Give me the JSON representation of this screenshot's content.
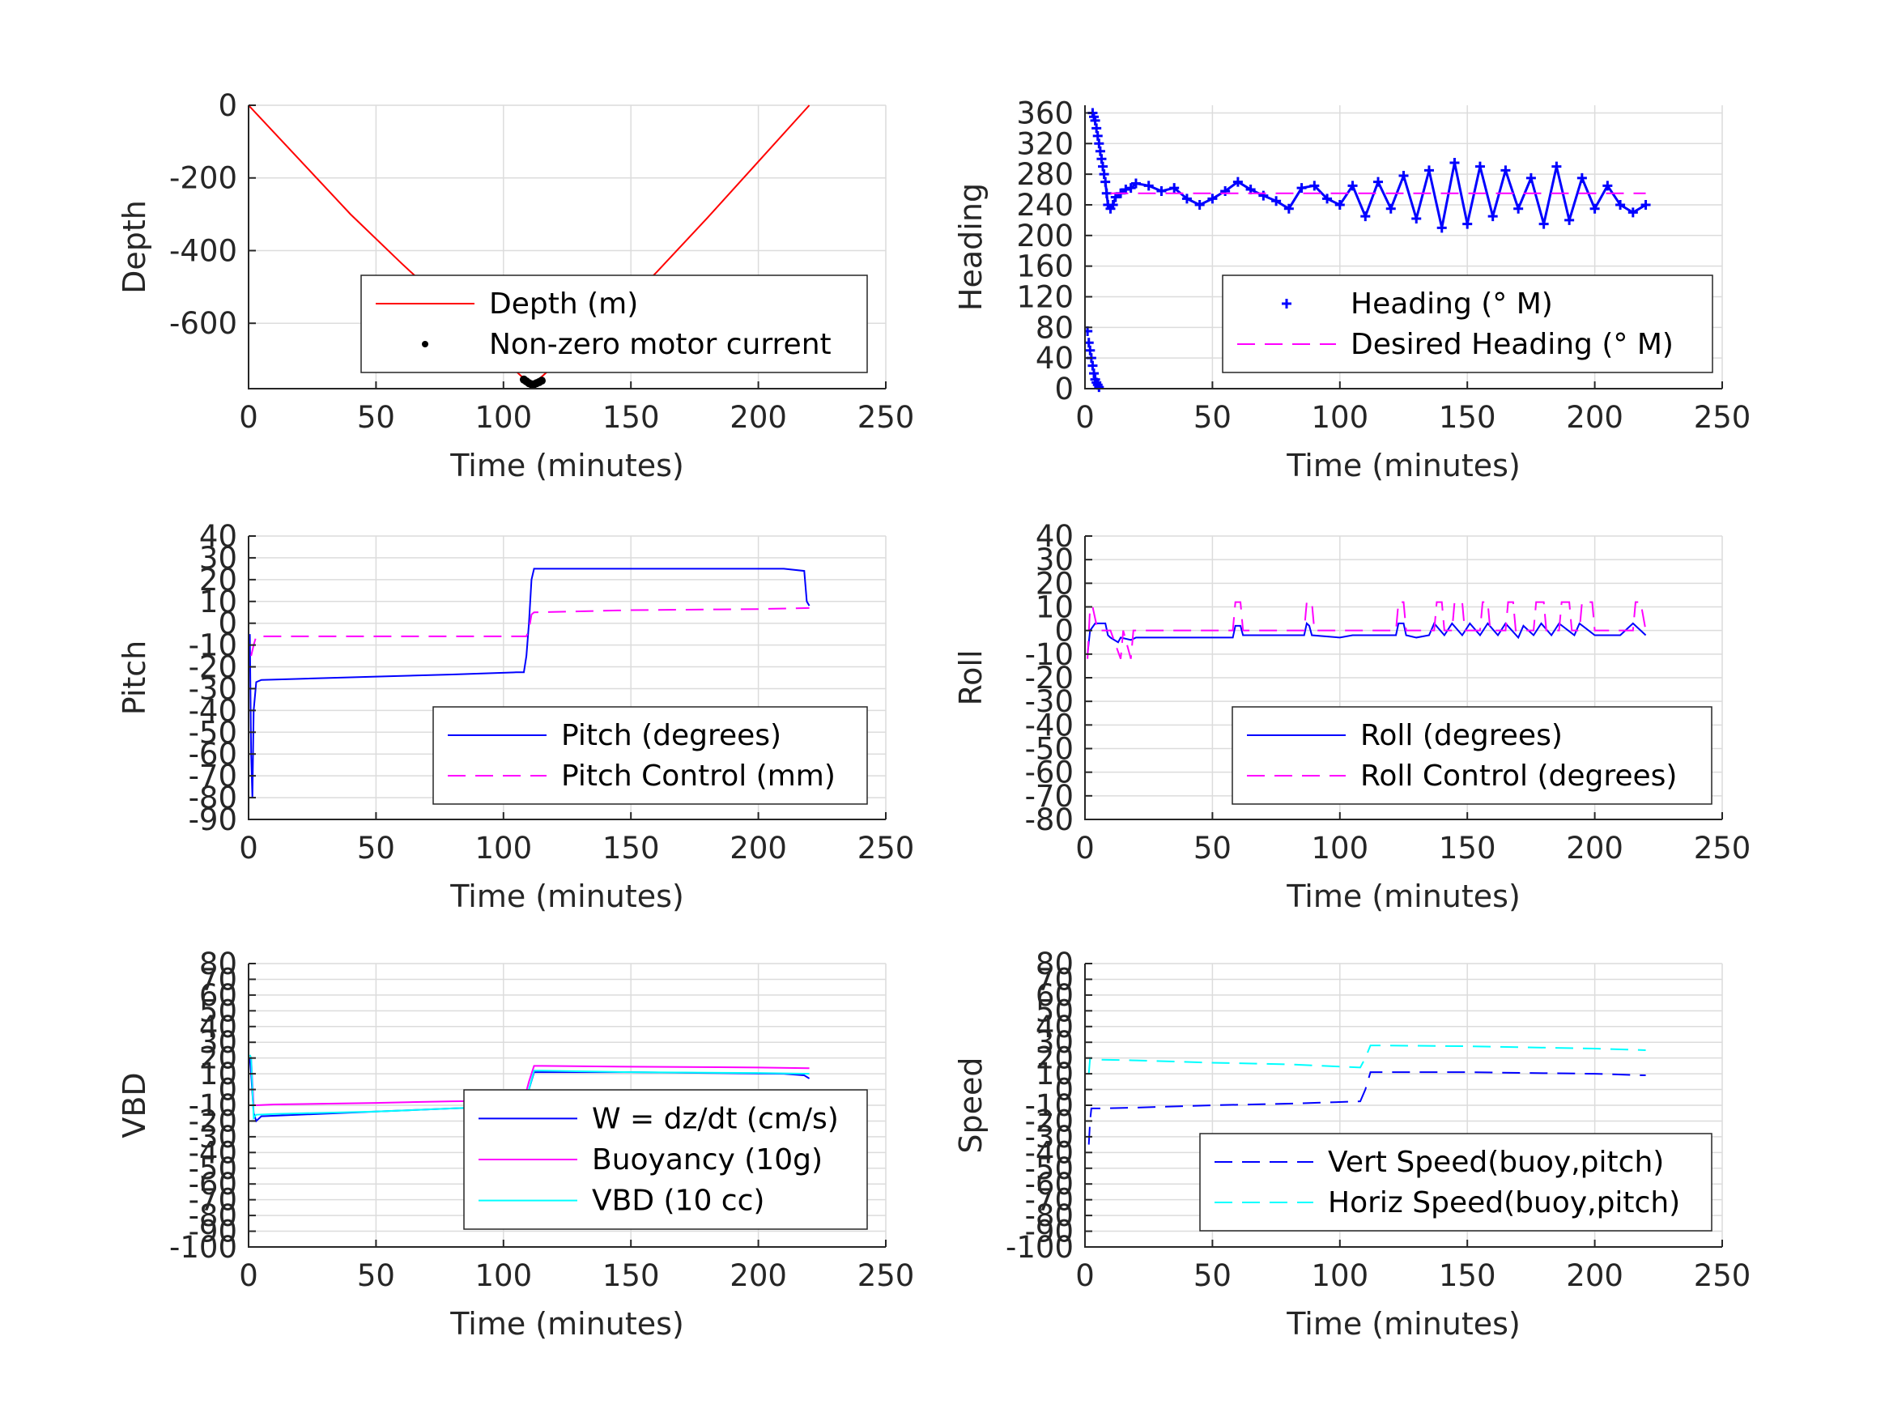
{
  "chart_data": [
    {
      "type": "line",
      "xlabel": "Time (minutes)",
      "ylabel": "Depth",
      "xlim": [
        0,
        250
      ],
      "ylim": [
        -780,
        0
      ],
      "xticks": [
        0,
        50,
        100,
        150,
        200,
        250
      ],
      "yticks": [
        0,
        -200,
        -400,
        -600
      ],
      "grid": true,
      "legend_position": "bottom-right",
      "series": [
        {
          "name": "Depth (m)",
          "color": "#ff0000",
          "style": "solid",
          "x": [
            0,
            20,
            40,
            60,
            80,
            100,
            110,
            113,
            120,
            140,
            160,
            180,
            200,
            220
          ],
          "y": [
            0,
            -150,
            -300,
            -435,
            -565,
            -700,
            -765,
            -760,
            -715,
            -600,
            -460,
            -310,
            -155,
            0
          ]
        },
        {
          "name": "Non-zero motor current",
          "color": "#000000",
          "style": "dot",
          "x": [
            108,
            109,
            110,
            111,
            112,
            113,
            114,
            115
          ],
          "y": [
            -755,
            -760,
            -765,
            -768,
            -768,
            -765,
            -762,
            -758
          ]
        }
      ]
    },
    {
      "type": "scatter",
      "xlabel": "Time (minutes)",
      "ylabel": "Heading",
      "xlim": [
        0,
        250
      ],
      "ylim": [
        0,
        370
      ],
      "xticks": [
        0,
        50,
        100,
        150,
        200,
        250
      ],
      "yticks": [
        0,
        40,
        80,
        120,
        160,
        200,
        240,
        280,
        320,
        360
      ],
      "grid": true,
      "legend_position": "bottom-right",
      "series": [
        {
          "name": "Heading (° M)",
          "color": "#0000ff",
          "style": "marker-plus",
          "x": [
            1,
            1.5,
            2,
            2.5,
            3,
            3.5,
            4,
            4.5,
            5,
            5.5,
            3,
            3.5,
            4,
            4.5,
            5,
            5.5,
            6,
            6.5,
            7,
            7.5,
            8,
            8.5,
            9,
            10,
            11,
            12,
            14,
            16,
            18,
            20,
            25,
            30,
            35,
            40,
            45,
            50,
            55,
            60,
            65,
            70,
            75,
            80,
            85,
            90,
            95,
            100,
            105,
            110,
            115,
            120,
            125,
            130,
            135,
            140,
            145,
            150,
            155,
            160,
            165,
            170,
            175,
            180,
            185,
            190,
            195,
            200,
            205,
            210,
            215,
            220
          ],
          "y": [
            75,
            60,
            50,
            40,
            30,
            20,
            12,
            8,
            5,
            2,
            360,
            355,
            350,
            340,
            330,
            320,
            310,
            300,
            290,
            280,
            270,
            255,
            240,
            235,
            240,
            250,
            255,
            260,
            262,
            268,
            265,
            258,
            262,
            248,
            240,
            248,
            258,
            270,
            260,
            252,
            245,
            235,
            262,
            265,
            248,
            240,
            265,
            225,
            270,
            235,
            278,
            222,
            285,
            210,
            295,
            215,
            290,
            225,
            285,
            235,
            275,
            215,
            290,
            220,
            275,
            235,
            265,
            240,
            230,
            240
          ]
        },
        {
          "name": "Desired Heading (° M)",
          "color": "#ff00ff",
          "style": "dash",
          "x": [
            10,
            220
          ],
          "y": [
            255,
            255
          ]
        }
      ]
    },
    {
      "type": "line",
      "xlabel": "Time (minutes)",
      "ylabel": "Pitch",
      "xlim": [
        0,
        250
      ],
      "ylim": [
        -90,
        40
      ],
      "xticks": [
        0,
        50,
        100,
        150,
        200,
        250
      ],
      "yticks": [
        40,
        30,
        20,
        10,
        0,
        -10,
        -20,
        -30,
        -40,
        -50,
        -60,
        -70,
        -80,
        -90
      ],
      "grid": true,
      "legend_position": "bottom-right",
      "series": [
        {
          "name": "Pitch (degrees)",
          "color": "#0000ff",
          "style": "solid",
          "x": [
            0.5,
            1,
            1.5,
            2,
            3,
            5,
            20,
            50,
            80,
            105,
            108,
            109,
            110,
            111,
            112,
            115,
            150,
            180,
            210,
            218,
            219,
            220
          ],
          "y": [
            -5,
            -60,
            -80,
            -40,
            -27,
            -26,
            -25.5,
            -24.5,
            -23.5,
            -22.5,
            -22.5,
            -15,
            0,
            20,
            25,
            25,
            25,
            25,
            25,
            24,
            10,
            8
          ]
        },
        {
          "name": "Pitch Control (mm)",
          "color": "#ff00ff",
          "style": "dash",
          "x": [
            1,
            2,
            3,
            5,
            20,
            50,
            80,
            109,
            110,
            111,
            112,
            150,
            200,
            220
          ],
          "y": [
            -15,
            -10,
            -6,
            -6,
            -6,
            -6,
            -6,
            -6,
            -3,
            4,
            5,
            6,
            6.5,
            7
          ]
        }
      ]
    },
    {
      "type": "line",
      "xlabel": "Time (minutes)",
      "ylabel": "Roll",
      "xlim": [
        0,
        250
      ],
      "ylim": [
        -80,
        40
      ],
      "xticks": [
        0,
        50,
        100,
        150,
        200,
        250
      ],
      "yticks": [
        40,
        30,
        20,
        10,
        0,
        -10,
        -20,
        -30,
        -40,
        -50,
        -60,
        -70,
        -80
      ],
      "grid": true,
      "legend_position": "bottom-right",
      "series": [
        {
          "name": "Roll (degrees)",
          "color": "#0000ff",
          "style": "solid",
          "x": [
            1,
            2,
            4,
            8,
            9,
            10,
            13,
            14,
            18,
            20,
            40,
            58,
            59,
            61,
            62,
            70,
            86,
            87,
            88,
            89,
            100,
            105,
            110,
            122,
            123,
            125,
            126,
            130,
            135,
            137,
            141,
            144,
            148,
            151,
            155,
            158,
            162,
            165,
            170,
            172,
            176,
            179,
            183,
            186,
            192,
            194,
            200,
            210,
            215,
            218,
            220
          ],
          "y": [
            -10,
            0,
            3,
            3,
            -2,
            -3,
            -5,
            -3,
            -4,
            -3,
            -3,
            -3,
            2,
            2,
            -2,
            -2,
            -2,
            3,
            2,
            -2,
            -3,
            -2,
            -2,
            -2,
            3,
            3,
            -2,
            -3,
            -2,
            3,
            -2,
            3,
            -2,
            3,
            -2,
            3,
            -2,
            3,
            -3,
            2,
            -2,
            3,
            -2,
            3,
            -2,
            3,
            -2,
            -2,
            3,
            0,
            -2
          ]
        },
        {
          "name": "Roll Control (degrees)",
          "color": "#ff00ff",
          "style": "dash",
          "x": [
            1,
            2,
            3,
            5,
            9,
            10,
            14,
            15,
            18,
            19,
            58,
            59,
            61,
            62,
            86,
            87,
            89,
            90,
            122,
            123,
            125,
            126,
            137,
            138,
            140,
            141,
            144,
            145,
            148,
            149,
            155,
            156,
            158,
            159,
            165,
            166,
            168,
            169,
            176,
            177,
            180,
            181,
            186,
            187,
            190,
            191,
            194,
            195,
            199,
            200,
            215,
            216,
            218,
            220
          ],
          "y": [
            -12,
            10,
            10,
            0,
            0,
            0,
            -12,
            0,
            -12,
            0,
            0,
            12,
            12,
            0,
            0,
            12,
            12,
            0,
            0,
            12,
            12,
            0,
            0,
            12,
            12,
            0,
            0,
            12,
            12,
            0,
            0,
            12,
            12,
            0,
            0,
            12,
            12,
            0,
            0,
            12,
            12,
            0,
            0,
            12,
            12,
            0,
            0,
            12,
            12,
            0,
            0,
            12,
            12,
            0
          ]
        }
      ]
    },
    {
      "type": "line",
      "xlabel": "Time (minutes)",
      "ylabel": "VBD",
      "xlim": [
        0,
        250
      ],
      "ylim": [
        -100,
        80
      ],
      "xticks": [
        0,
        50,
        100,
        150,
        200,
        250
      ],
      "yticks": [
        80,
        70,
        60,
        50,
        40,
        30,
        20,
        10,
        0,
        -10,
        -20,
        -30,
        -40,
        -50,
        -60,
        -70,
        -80,
        -90,
        -100
      ],
      "ytick_labels": [
        "80",
        "70",
        "60",
        "50",
        "40",
        "30",
        "20",
        "10",
        "0",
        "-10",
        "-20",
        "-30",
        "-40",
        "-50",
        "-60",
        "-70",
        "-80",
        "-90",
        "-100"
      ],
      "grid": true,
      "legend_position": "bottom-right",
      "series": [
        {
          "name": "W = dz/dt (cm/s)",
          "color": "#0000ff",
          "style": "solid",
          "x": [
            0.5,
            1,
            2,
            3,
            5,
            20,
            50,
            80,
            108,
            109,
            110,
            112,
            115,
            150,
            180,
            210,
            218,
            219,
            220
          ],
          "y": [
            20,
            10,
            -15,
            -20,
            -17,
            -16,
            -14,
            -12,
            -10.5,
            -8,
            0,
            11,
            11,
            11,
            10.5,
            10,
            9,
            8,
            7
          ]
        },
        {
          "name": "Buoyancy (10g)",
          "color": "#ff00ff",
          "style": "solid",
          "x": [
            1,
            2,
            3,
            10,
            50,
            80,
            108,
            110,
            112,
            115,
            150,
            200,
            220
          ],
          "y": [
            20,
            -10,
            -10,
            -9.5,
            -8.5,
            -7.5,
            -7,
            5,
            15,
            15,
            14.5,
            14,
            13.5
          ]
        },
        {
          "name": "VBD (10 cc)",
          "color": "#00ffff",
          "style": "solid",
          "x": [
            0.5,
            1,
            2,
            3,
            10,
            50,
            80,
            108,
            110,
            112,
            115,
            150,
            200,
            220
          ],
          "y": [
            22,
            20,
            -18,
            -16,
            -15.5,
            -14,
            -12,
            -10,
            0,
            12,
            12,
            11,
            10.5,
            10
          ]
        }
      ]
    },
    {
      "type": "line",
      "xlabel": "Time (minutes)",
      "ylabel": "Speed",
      "xlim": [
        0,
        250
      ],
      "ylim": [
        -100,
        80
      ],
      "xticks": [
        0,
        50,
        100,
        150,
        200,
        250
      ],
      "yticks": [
        80,
        70,
        60,
        50,
        40,
        30,
        20,
        10,
        0,
        -10,
        -20,
        -30,
        -40,
        -50,
        -60,
        -70,
        -80,
        -90,
        -100
      ],
      "ytick_labels": [
        "80",
        "70",
        "60",
        "50",
        "40",
        "30",
        "20",
        "10",
        "0",
        "-10",
        "-20",
        "-30",
        "-40",
        "-50",
        "-60",
        "-70",
        "-80",
        "-90",
        "-100"
      ],
      "grid": true,
      "legend_position": "bottom-right",
      "series": [
        {
          "name": "Vert Speed(buoy,pitch)",
          "color": "#0000ff",
          "style": "dash",
          "x": [
            1.5,
            2,
            2.5,
            5,
            20,
            50,
            80,
            108,
            110,
            112,
            114,
            150,
            200,
            220
          ],
          "y": [
            -35,
            -20,
            -12,
            -12,
            -11.5,
            -10,
            -9,
            -7.5,
            0,
            11,
            11,
            11,
            10,
            9
          ]
        },
        {
          "name": "Horiz Speed(buoy,pitch)",
          "color": "#00ffff",
          "style": "dash",
          "x": [
            1.5,
            2,
            5,
            20,
            50,
            80,
            108,
            110,
            112,
            114,
            150,
            200,
            220
          ],
          "y": [
            10,
            20,
            19,
            18.5,
            17,
            16,
            14,
            20,
            28,
            28,
            27.5,
            26,
            25
          ]
        }
      ]
    }
  ]
}
